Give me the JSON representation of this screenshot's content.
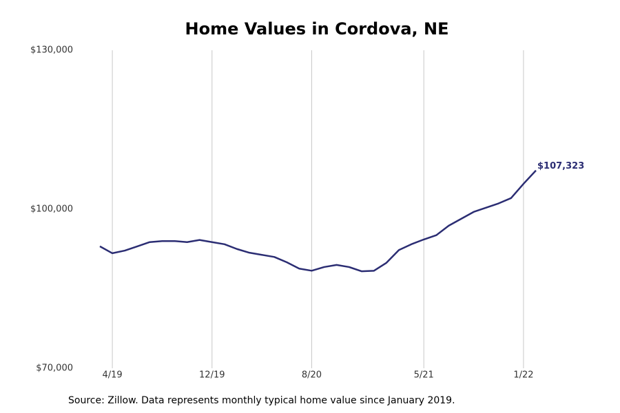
{
  "chart_data": {
    "type": "line",
    "title": "Home Values in Cordova, NE",
    "source": "Source: Zillow. Data represents monthly typical home value since January 2019.",
    "categories": [
      null,
      "4/19",
      null,
      null,
      null,
      null,
      null,
      null,
      null,
      "12/19",
      null,
      null,
      null,
      null,
      null,
      null,
      null,
      "8/20",
      null,
      null,
      null,
      null,
      null,
      null,
      null,
      null,
      "5/21",
      null,
      null,
      null,
      null,
      null,
      null,
      null,
      "1/22",
      null
    ],
    "series": [
      {
        "name": "Home value",
        "color": "#2b2d73",
        "values": [
          93000,
          91700,
          92200,
          93000,
          93800,
          94000,
          94000,
          93800,
          94200,
          93800,
          93400,
          92500,
          91800,
          91400,
          91000,
          90000,
          88800,
          88400,
          89100,
          89500,
          89100,
          88300,
          88400,
          89900,
          92300,
          93400,
          94300,
          95100,
          96900,
          98200,
          99500,
          100300,
          101100,
          102100,
          104800,
          107323
        ],
        "value_labels": [
          null,
          null,
          null,
          null,
          null,
          null,
          null,
          null,
          null,
          null,
          null,
          null,
          null,
          null,
          null,
          null,
          null,
          null,
          null,
          null,
          null,
          null,
          null,
          null,
          null,
          null,
          null,
          null,
          null,
          null,
          null,
          null,
          null,
          null,
          null,
          "$107,323"
        ]
      }
    ],
    "ylim": [
      70000,
      130000
    ],
    "yticks": [
      {
        "value": 70000,
        "label": "$70,000"
      },
      {
        "value": 100000,
        "label": "$100,000"
      },
      {
        "value": 130000,
        "label": "$130,000"
      }
    ],
    "grid": true
  }
}
